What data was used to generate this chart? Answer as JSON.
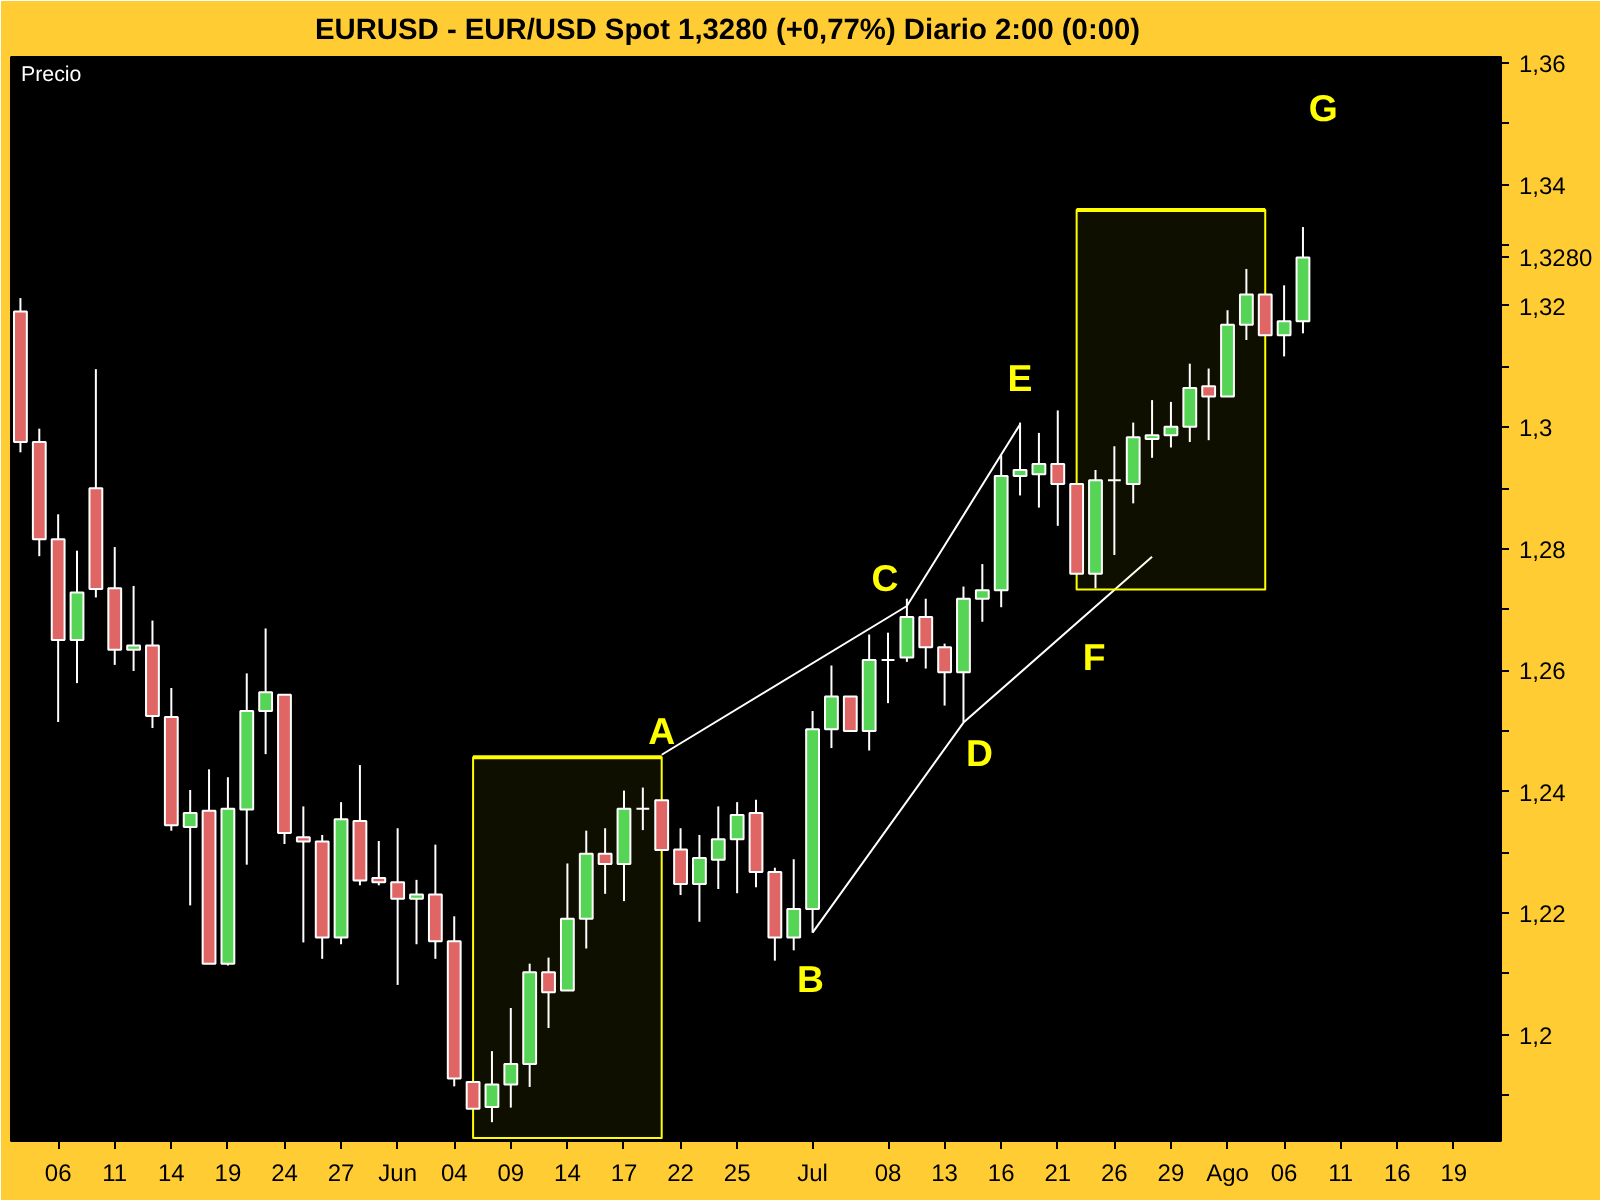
{
  "chart_data": {
    "type": "candlestick",
    "title": "EURUSD - EUR/USD Spot    1,3280 (+0,77%)    Diario  2:00 (0:00)",
    "categories": [
      null,
      null,
      "06",
      null,
      null,
      "11",
      null,
      null,
      "14",
      null,
      null,
      "19",
      null,
      null,
      "24",
      null,
      null,
      "27",
      null,
      null,
      "Jun",
      null,
      null,
      "04",
      null,
      null,
      "09",
      null,
      null,
      "14",
      null,
      null,
      "17",
      null,
      null,
      "22",
      null,
      null,
      "25",
      null,
      null,
      null,
      "Jul",
      null,
      null,
      null,
      "08",
      null,
      null,
      "13",
      null,
      null,
      "16",
      null,
      null,
      "21",
      null,
      null,
      "26",
      null,
      null,
      "29",
      null,
      null,
      "Ago",
      null,
      null,
      "06",
      null,
      null,
      "11",
      null,
      null,
      "16",
      null,
      null,
      "19",
      null,
      null
    ],
    "ohlc": [
      [
        1.3191,
        1.3213,
        1.2959,
        1.2976
      ],
      [
        1.2976,
        1.2998,
        1.2788,
        1.2816
      ],
      [
        1.2816,
        1.2857,
        1.2515,
        1.265
      ],
      [
        1.265,
        1.2797,
        1.2579,
        1.2728
      ],
      [
        1.29,
        1.3096,
        1.272,
        1.2734
      ],
      [
        1.2735,
        1.2803,
        1.2609,
        1.2634
      ],
      [
        1.2634,
        1.2739,
        1.2599,
        1.2641
      ],
      [
        1.2641,
        1.2682,
        1.2505,
        1.2525
      ],
      [
        1.2523,
        1.2571,
        1.2336,
        1.2345
      ],
      [
        1.2342,
        1.2403,
        1.2213,
        1.2365
      ],
      [
        1.2369,
        1.2437,
        1.2117,
        1.2117
      ],
      [
        1.2117,
        1.2424,
        1.2114,
        1.2372
      ],
      [
        1.2371,
        1.2595,
        1.228,
        1.2533
      ],
      [
        1.2533,
        1.2669,
        1.2462,
        1.2564
      ],
      [
        1.256,
        1.256,
        1.2314,
        1.2332
      ],
      [
        1.2325,
        1.2376,
        1.2152,
        1.2318
      ],
      [
        1.2318,
        1.2329,
        1.2125,
        1.216
      ],
      [
        1.216,
        1.2383,
        1.2149,
        1.2355
      ],
      [
        1.2352,
        1.2444,
        1.2246,
        1.2254
      ],
      [
        1.2258,
        1.2319,
        1.2246,
        1.2251
      ],
      [
        1.2251,
        1.234,
        1.2082,
        1.2224
      ],
      [
        1.2224,
        1.2255,
        1.2149,
        1.2231
      ],
      [
        1.2231,
        1.2313,
        1.2125,
        1.2154
      ],
      [
        1.2154,
        1.2195,
        1.1915,
        1.1928
      ],
      [
        1.1922,
        1.1922,
        1.1878,
        1.1878
      ],
      [
        1.1881,
        1.1973,
        1.1856,
        1.1918
      ],
      [
        1.1918,
        1.2044,
        1.188,
        1.1952
      ],
      [
        1.1952,
        1.2117,
        1.1914,
        1.2103
      ],
      [
        1.2103,
        1.2127,
        1.2011,
        1.207
      ],
      [
        1.2073,
        1.2282,
        1.2073,
        1.2191
      ],
      [
        1.2191,
        1.2336,
        1.2142,
        1.2298
      ],
      [
        1.2298,
        1.234,
        1.2232,
        1.2281
      ],
      [
        1.2281,
        1.2402,
        1.222,
        1.2372
      ],
      [
        1.2372,
        1.2407,
        1.2337,
        1.2372
      ],
      [
        1.2386,
        1.2386,
        1.2304,
        1.2304
      ],
      [
        1.2305,
        1.234,
        1.223,
        1.2248
      ],
      [
        1.2248,
        1.2329,
        1.2186,
        1.2291
      ],
      [
        1.2288,
        1.2376,
        1.224,
        1.2322
      ],
      [
        1.2322,
        1.2383,
        1.2233,
        1.2362
      ],
      [
        1.2365,
        1.2387,
        1.2243,
        1.2268
      ],
      [
        1.2268,
        1.2275,
        1.2122,
        1.216
      ],
      [
        1.216,
        1.2289,
        1.2139,
        1.2207
      ],
      [
        1.2207,
        1.2533,
        1.2168,
        1.2503
      ],
      [
        1.2503,
        1.2608,
        1.2472,
        1.2557
      ],
      [
        1.2557,
        1.2557,
        1.25,
        1.25
      ],
      [
        1.25,
        1.2659,
        1.2468,
        1.2617
      ],
      [
        1.2617,
        1.2662,
        1.2546,
        1.2617
      ],
      [
        1.2621,
        1.2718,
        1.2614,
        1.2688
      ],
      [
        1.2688,
        1.2718,
        1.2603,
        1.2638
      ],
      [
        1.2638,
        1.2644,
        1.2542,
        1.2597
      ],
      [
        1.2597,
        1.2738,
        1.2515,
        1.2718
      ],
      [
        1.2718,
        1.2775,
        1.268,
        1.2732
      ],
      [
        1.2732,
        1.2954,
        1.2704,
        1.292
      ],
      [
        1.292,
        1.3008,
        1.2888,
        1.293
      ],
      [
        1.2923,
        1.2991,
        1.2868,
        1.294
      ],
      [
        1.294,
        1.3028,
        1.2838,
        1.2907
      ],
      [
        1.2907,
        1.2907,
        1.2759,
        1.2759
      ],
      [
        1.2759,
        1.293,
        1.2735,
        1.2913
      ],
      [
        1.2913,
        1.2969,
        1.279,
        1.2913
      ],
      [
        1.2907,
        1.3008,
        1.2875,
        1.2984
      ],
      [
        1.2981,
        1.3045,
        1.295,
        1.2987
      ],
      [
        1.2987,
        1.3042,
        1.2967,
        1.3001
      ],
      [
        1.3001,
        1.3105,
        1.2976,
        1.3065
      ],
      [
        1.3068,
        1.3097,
        1.2979,
        1.3051
      ],
      [
        1.3051,
        1.3193,
        1.3051,
        1.3169
      ],
      [
        1.3169,
        1.3261,
        1.3144,
        1.3219
      ],
      [
        1.3219,
        1.3219,
        1.3152,
        1.3152
      ],
      [
        1.3152,
        1.3234,
        1.3117,
        1.3175
      ],
      [
        1.3175,
        1.333,
        1.3155,
        1.328
      ],
      null,
      null,
      null,
      null,
      null,
      null,
      null,
      null,
      null,
      null
    ],
    "colors": [
      "#e06666",
      "#e06666",
      "#e06666",
      "#55d455",
      "#e06666",
      "#e06666",
      "#55d455",
      "#e06666",
      "#e06666",
      "#55d455",
      "#e06666",
      "#55d455",
      "#55d455",
      "#55d455",
      "#e06666",
      "#e06666",
      "#e06666",
      "#55d455",
      "#e06666",
      "#e06666",
      "#e06666",
      "#55d455",
      "#e06666",
      "#e06666",
      "#e06666",
      "#55d455",
      "#55d455",
      "#55d455",
      "#e06666",
      "#55d455",
      "#55d455",
      "#e06666",
      "#55d455",
      "#ffffff",
      "#e06666",
      "#e06666",
      "#55d455",
      "#55d455",
      "#55d455",
      "#e06666",
      "#e06666",
      "#55d455",
      "#55d455",
      "#55d455",
      "#e06666",
      "#55d455",
      "#ffffff",
      "#55d455",
      "#e06666",
      "#e06666",
      "#55d455",
      "#55d455",
      "#55d455",
      "#55d455",
      "#55d455",
      "#e06666",
      "#e06666",
      "#55d455",
      "#ffffff",
      "#55d455",
      "#55d455",
      "#55d455",
      "#55d455",
      "#e06666",
      "#55d455",
      "#55d455",
      "#e06666",
      "#55d455",
      "#55d455",
      null,
      null,
      null,
      null,
      null,
      null,
      null,
      null,
      null,
      null
    ],
    "series": [
      {
        "type": "line",
        "color": "#ffffff",
        "values": [
          null,
          null,
          null,
          null,
          null,
          null,
          null,
          null,
          null,
          null,
          null,
          null,
          null,
          null,
          null,
          null,
          null,
          null,
          null,
          null,
          null,
          null,
          null,
          null,
          null,
          null,
          null,
          null,
          null,
          null,
          null,
          null,
          null,
          null,
          1.2461,
          null,
          null,
          null,
          null,
          null,
          null,
          null,
          null,
          null,
          null,
          null,
          null,
          1.2706,
          null,
          null,
          null,
          null,
          null,
          1.3005,
          null,
          null,
          null,
          null,
          null,
          null,
          null,
          null,
          null,
          null,
          null,
          null,
          null,
          null,
          null,
          null,
          null,
          null,
          null,
          null,
          null,
          null,
          null,
          null,
          null
        ]
      },
      {
        "type": "line",
        "color": "#ffffff",
        "values": [
          null,
          null,
          null,
          null,
          null,
          null,
          null,
          null,
          null,
          null,
          null,
          null,
          null,
          null,
          null,
          null,
          null,
          null,
          null,
          null,
          null,
          null,
          null,
          null,
          null,
          null,
          null,
          null,
          null,
          null,
          null,
          null,
          null,
          null,
          null,
          null,
          null,
          null,
          null,
          null,
          null,
          null,
          1.2168,
          null,
          null,
          null,
          null,
          null,
          null,
          null,
          1.2514,
          null,
          null,
          null,
          null,
          null,
          null,
          null,
          null,
          null,
          1.2787,
          null,
          null,
          null,
          null,
          null,
          null,
          null,
          null,
          null,
          null,
          null,
          null,
          null,
          null,
          null,
          null,
          null,
          null
        ]
      },
      {
        "type": "line",
        "color": "#ffff00",
        "values": [
          null,
          null,
          null,
          null,
          null,
          null,
          null,
          null,
          null,
          null,
          null,
          null,
          null,
          null,
          null,
          null,
          null,
          null,
          null,
          null,
          null,
          null,
          null,
          null,
          1.2457,
          1.2457,
          1.2457,
          1.2457,
          1.2457,
          1.2457,
          1.2457,
          1.2457,
          1.2457,
          1.2457,
          1.2457,
          null,
          null,
          null,
          null,
          null,
          null,
          null,
          null,
          null,
          null,
          null,
          null,
          null,
          null,
          null,
          null,
          null,
          null,
          null,
          null,
          null,
          null,
          null,
          null,
          null,
          null,
          null,
          null,
          null,
          null,
          null,
          null,
          null,
          null,
          null,
          null,
          null,
          null,
          null,
          null,
          null,
          null,
          null,
          null
        ],
        "lower": [
          null,
          null,
          null,
          null,
          null,
          null,
          null,
          null,
          null,
          null,
          null,
          null,
          null,
          null,
          null,
          null,
          null,
          null,
          null,
          null,
          null,
          null,
          null,
          null,
          1.183,
          1.183,
          1.183,
          1.183,
          1.183,
          1.183,
          1.183,
          1.183,
          1.183,
          1.183,
          1.183,
          null,
          null,
          null,
          null,
          null,
          null,
          null,
          null,
          null,
          null,
          null,
          null,
          null,
          null,
          null,
          null,
          null,
          null,
          null,
          null,
          null,
          null,
          null,
          null,
          null,
          null,
          null,
          null,
          null,
          null,
          null,
          null,
          null,
          null,
          null,
          null,
          null,
          null,
          null,
          null,
          null,
          null,
          null,
          null
        ],
        "upper": [
          null,
          null,
          null,
          null,
          null,
          null,
          null,
          null,
          null,
          null,
          null,
          null,
          null,
          null,
          null,
          null,
          null,
          null,
          null,
          null,
          null,
          null,
          null,
          null,
          1.2457,
          1.2457,
          1.2457,
          1.2457,
          1.2457,
          1.2457,
          1.2457,
          1.2457,
          1.2457,
          1.2457,
          1.2457,
          null,
          null,
          null,
          null,
          null,
          null,
          null,
          null,
          null,
          null,
          null,
          null,
          null,
          null,
          null,
          null,
          null,
          null,
          null,
          null,
          null,
          null,
          null,
          null,
          null,
          null,
          null,
          null,
          null,
          null,
          null,
          null,
          null,
          null,
          null,
          null,
          null,
          null,
          null,
          null,
          null,
          null,
          null,
          null
        ]
      },
      {
        "type": "line",
        "color": "#ffff00",
        "values": [
          null,
          null,
          null,
          null,
          null,
          null,
          null,
          null,
          null,
          null,
          null,
          null,
          null,
          null,
          null,
          null,
          null,
          null,
          null,
          null,
          null,
          null,
          null,
          null,
          null,
          null,
          null,
          null,
          null,
          null,
          null,
          null,
          null,
          null,
          null,
          null,
          null,
          null,
          null,
          null,
          null,
          null,
          null,
          null,
          null,
          null,
          null,
          null,
          null,
          null,
          null,
          null,
          null,
          null,
          null,
          null,
          1.3358,
          1.3358,
          1.3358,
          1.3358,
          1.3358,
          1.3358,
          1.3358,
          1.3358,
          1.3358,
          1.3358,
          1.3358,
          null,
          null,
          null,
          null,
          null,
          null,
          null,
          null,
          null,
          null,
          null,
          null
        ],
        "lower": [
          null,
          null,
          null,
          null,
          null,
          null,
          null,
          null,
          null,
          null,
          null,
          null,
          null,
          null,
          null,
          null,
          null,
          null,
          null,
          null,
          null,
          null,
          null,
          null,
          null,
          null,
          null,
          null,
          null,
          null,
          null,
          null,
          null,
          null,
          null,
          null,
          null,
          null,
          null,
          null,
          null,
          null,
          null,
          null,
          null,
          null,
          null,
          null,
          null,
          null,
          null,
          null,
          null,
          null,
          null,
          null,
          1.2733,
          1.2733,
          1.2733,
          1.2733,
          1.2733,
          1.2733,
          1.2733,
          1.2733,
          1.2733,
          1.2733,
          1.2733,
          null,
          null,
          null,
          null,
          null,
          null,
          null,
          null,
          null,
          null,
          null,
          null
        ],
        "upper": [
          null,
          null,
          null,
          null,
          null,
          null,
          null,
          null,
          null,
          null,
          null,
          null,
          null,
          null,
          null,
          null,
          null,
          null,
          null,
          null,
          null,
          null,
          null,
          null,
          null,
          null,
          null,
          null,
          null,
          null,
          null,
          null,
          null,
          null,
          null,
          null,
          null,
          null,
          null,
          null,
          null,
          null,
          null,
          null,
          null,
          null,
          null,
          null,
          null,
          null,
          null,
          null,
          null,
          null,
          null,
          null,
          1.3358,
          1.3358,
          1.3358,
          1.3358,
          1.3358,
          1.3358,
          1.3358,
          1.3358,
          1.3358,
          1.3358,
          1.3358,
          null,
          null,
          null,
          null,
          null,
          null,
          null,
          null,
          null,
          null,
          null,
          null
        ]
      }
    ],
    "ylim": [
      1.1825,
      1.361
    ],
    "yticks": [
      {
        "value": 1.36,
        "label": "1,36"
      },
      {
        "value": 1.35,
        "label": null
      },
      {
        "value": 1.34,
        "label": "1,34"
      },
      {
        "value": 1.33,
        "label": null
      },
      {
        "value": 1.328,
        "label": "1,3280"
      },
      {
        "value": 1.32,
        "label": "1,32"
      },
      {
        "value": 1.31,
        "label": null
      },
      {
        "value": 1.3,
        "label": "1,3"
      },
      {
        "value": 1.29,
        "label": null
      },
      {
        "value": 1.28,
        "label": "1,28"
      },
      {
        "value": 1.27,
        "label": null
      },
      {
        "value": 1.26,
        "label": "1,26"
      },
      {
        "value": 1.25,
        "label": null
      },
      {
        "value": 1.24,
        "label": "1,24"
      },
      {
        "value": 1.23,
        "label": null
      },
      {
        "value": 1.22,
        "label": "1,22"
      },
      {
        "value": 1.21,
        "label": null
      },
      {
        "value": 1.2,
        "label": "1,2"
      },
      {
        "value": 1.19,
        "label": null
      }
    ],
    "annotations": [
      "Precio",
      "A",
      "B",
      "C",
      "D",
      "E",
      "F",
      "G"
    ],
    "grid": false
  }
}
